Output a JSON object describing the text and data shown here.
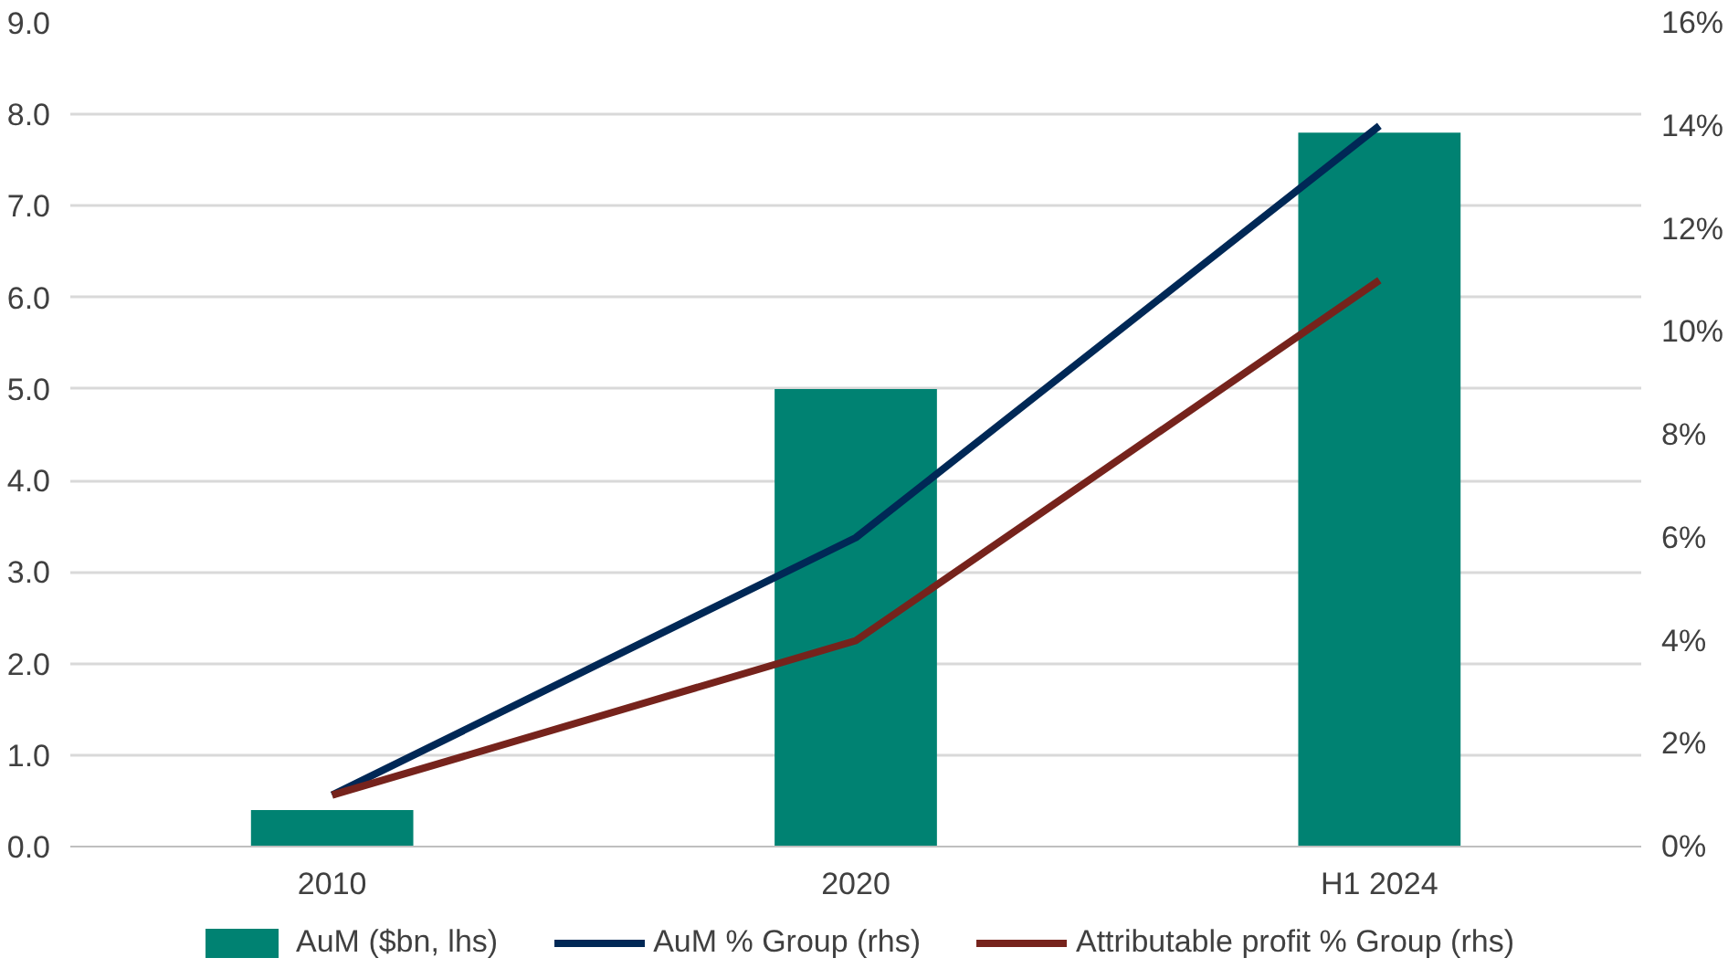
{
  "chart_data": {
    "type": "bar",
    "categories": [
      "2010",
      "2020",
      "H1 2024"
    ],
    "series": [
      {
        "name": "AuM ($bn, lhs)",
        "color": "#008272",
        "values": [
          0.4,
          5.0,
          7.8
        ]
      },
      {
        "name": "AuM % Group (rhs)",
        "type": "line",
        "axis": "y2",
        "color": "#002856",
        "values": [
          1,
          6,
          14
        ]
      },
      {
        "name": "Attributable profit % Group (rhs)",
        "type": "line",
        "axis": "y2",
        "color": "#76231c",
        "values": [
          1,
          4,
          11
        ]
      }
    ],
    "ylim": [
      0,
      9
    ],
    "yticks": [
      {
        "value": 0,
        "label": "0.0"
      },
      {
        "value": 1,
        "label": "1.0"
      },
      {
        "value": 2,
        "label": "2.0"
      },
      {
        "value": 3,
        "label": "3.0"
      },
      {
        "value": 4,
        "label": "4.0"
      },
      {
        "value": 5,
        "label": "5.0"
      },
      {
        "value": 6,
        "label": "6.0"
      },
      {
        "value": 7,
        "label": "7.0"
      },
      {
        "value": 8,
        "label": "8.0"
      },
      {
        "value": 9,
        "label": "9.0"
      }
    ],
    "y2lim": [
      0,
      16
    ],
    "y2ticks": [
      {
        "value": 0,
        "label": "0%"
      },
      {
        "value": 2,
        "label": "2%"
      },
      {
        "value": 4,
        "label": "4%"
      },
      {
        "value": 6,
        "label": "6%"
      },
      {
        "value": 8,
        "label": "8%"
      },
      {
        "value": 10,
        "label": "10%"
      },
      {
        "value": 12,
        "label": "12%"
      },
      {
        "value": 14,
        "label": "14%"
      },
      {
        "value": 16,
        "label": "16%"
      }
    ],
    "grid": "y",
    "legend": "bottom",
    "line_style": "solid",
    "marker": "none"
  }
}
